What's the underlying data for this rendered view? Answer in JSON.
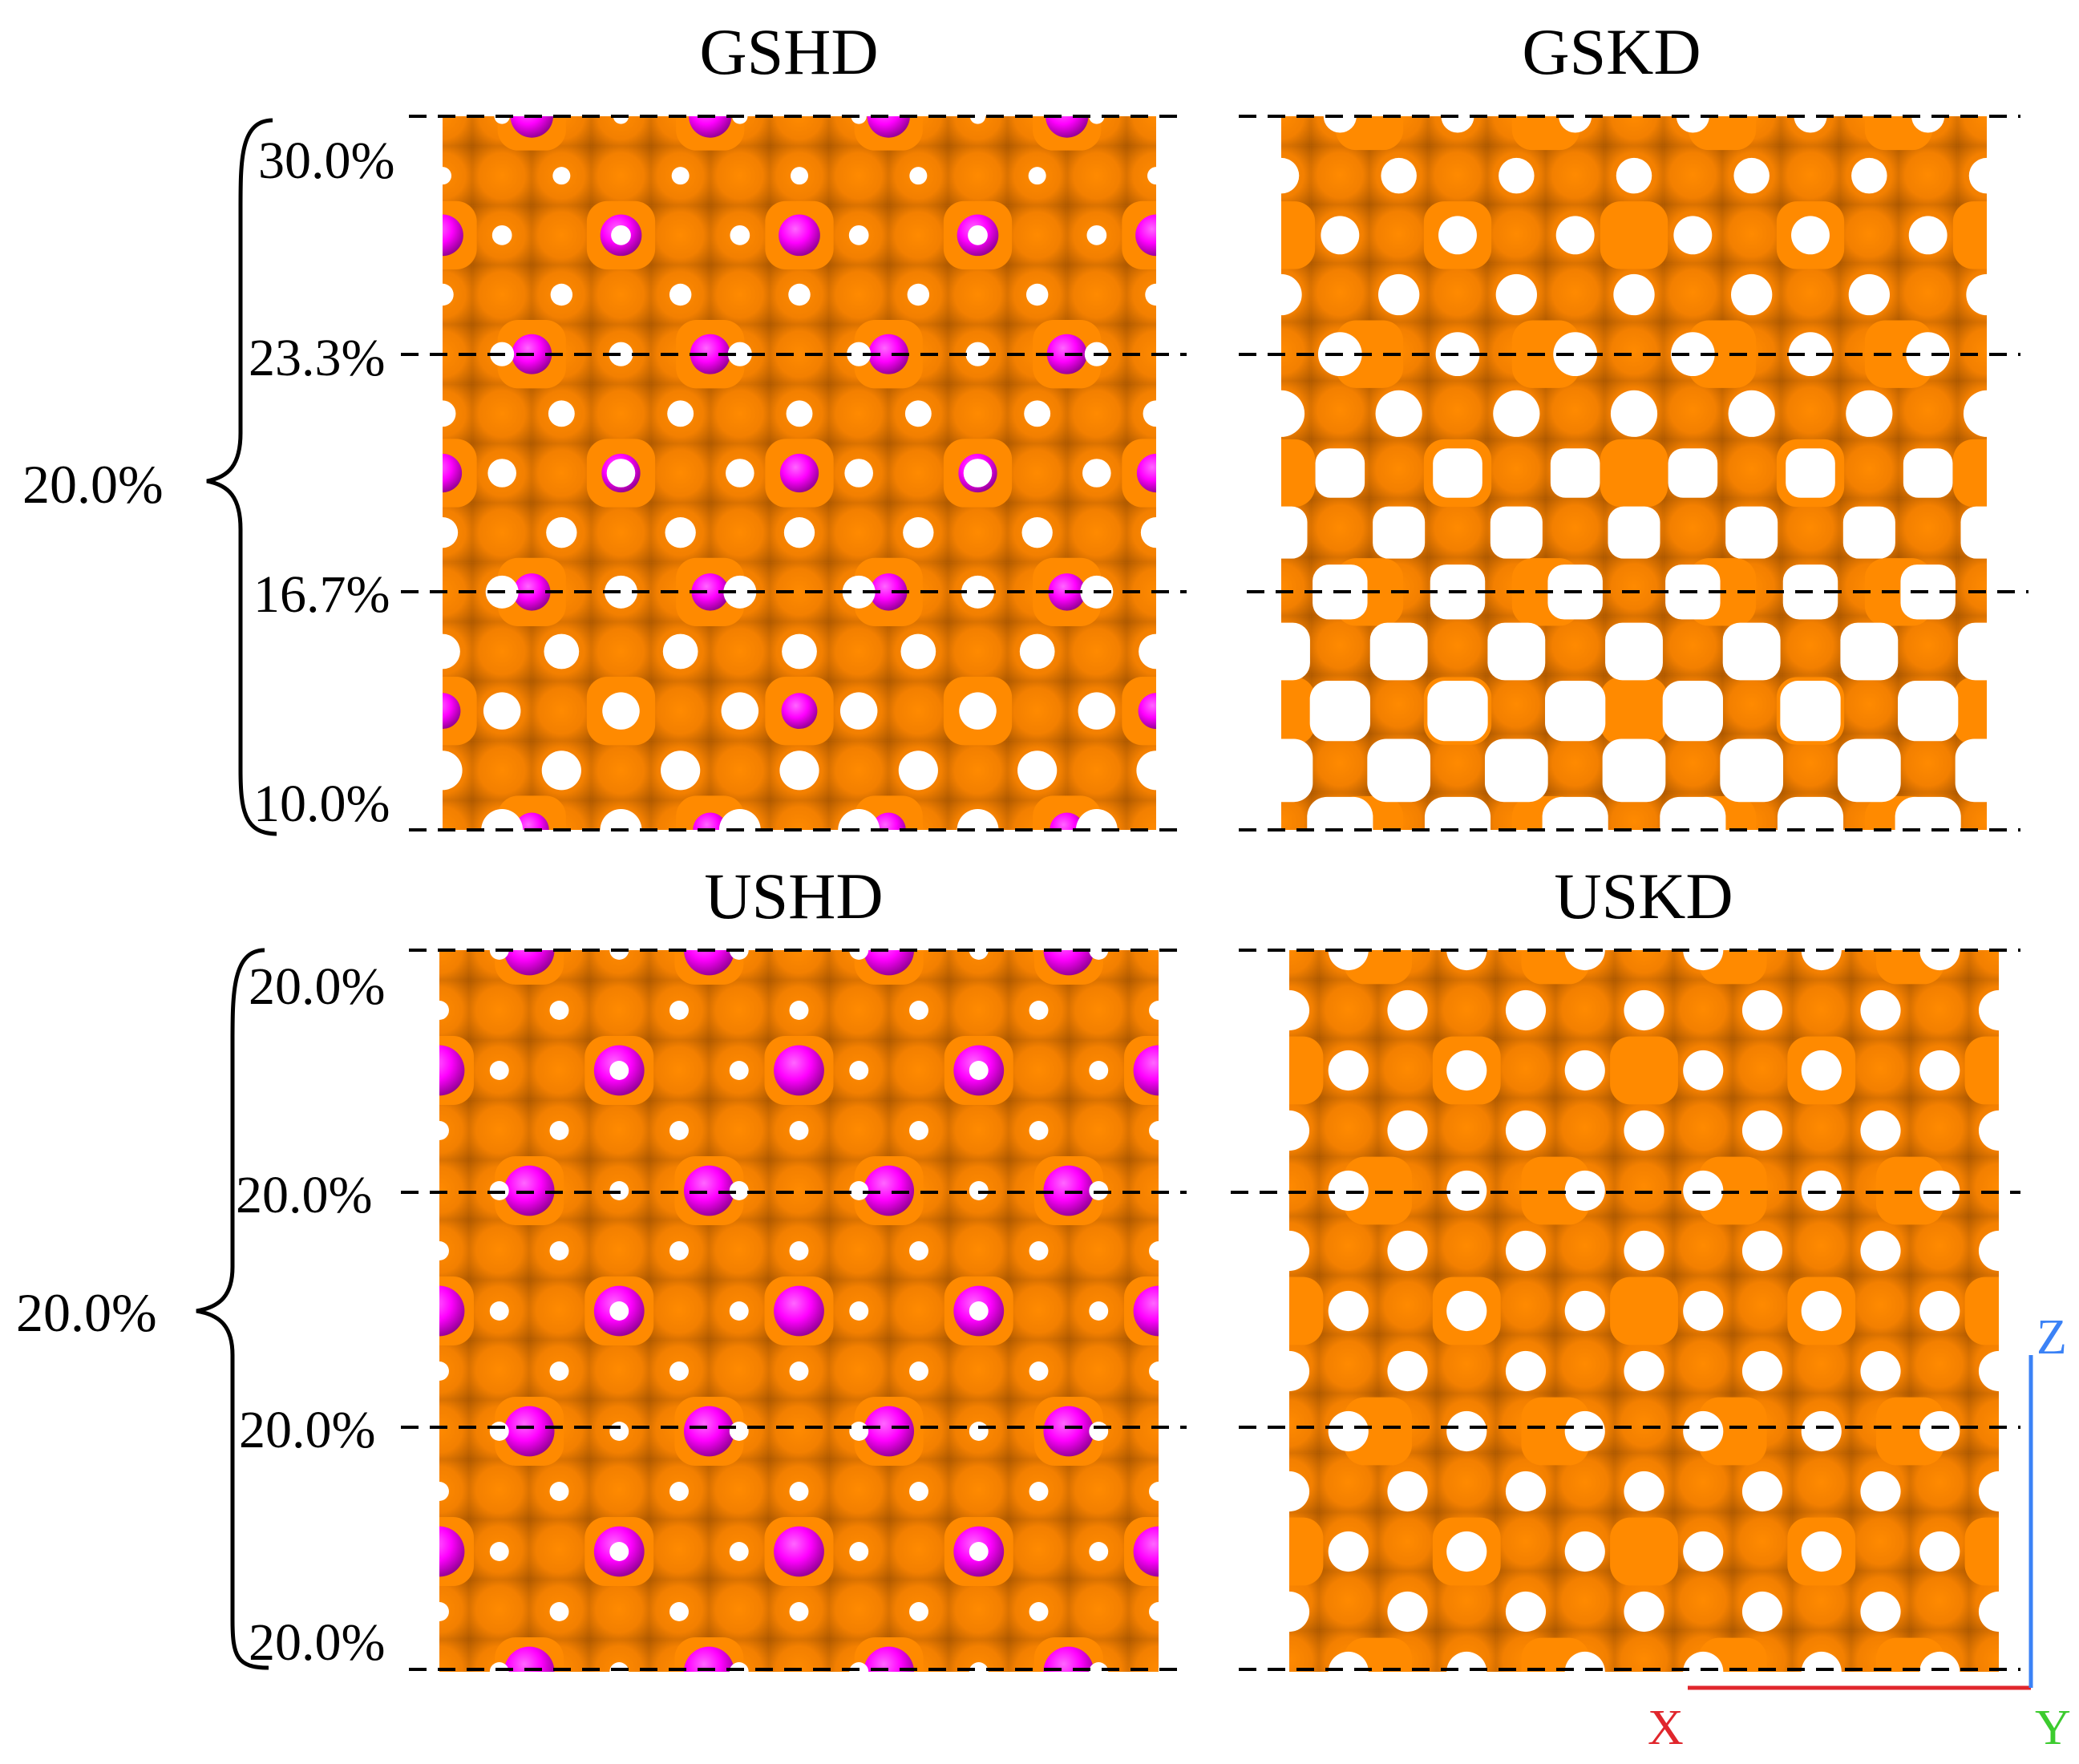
{
  "panels": [
    {
      "title": "GSHD",
      "variant": "hd",
      "gradient": "graded"
    },
    {
      "title": "GSKD",
      "variant": "kd",
      "gradient": "graded"
    },
    {
      "title": "USHD",
      "variant": "hd",
      "gradient": "uniform"
    },
    {
      "title": "USKD",
      "variant": "kd",
      "gradient": "uniform"
    }
  ],
  "rows": [
    {
      "overall_label": "20.0%",
      "level_labels": [
        "30.0%",
        "23.3%",
        "16.7%",
        "10.0%"
      ]
    },
    {
      "overall_label": "20.0%",
      "level_labels": [
        "20.0%",
        "20.0%",
        "20.0%",
        "20.0%"
      ]
    }
  ],
  "axes": {
    "x": "X",
    "y": "Y",
    "z": "Z"
  },
  "colors": {
    "matrix": "#FF8A00",
    "matrix_dark": "#8A3E00",
    "inclusion": "#FF00FF",
    "inclusion_dark": "#8A008A",
    "pore": "#FFFFFF",
    "x_axis": "#E0262C",
    "y_axis": "#3CCB2E",
    "z_axis": "#3B82F6"
  }
}
